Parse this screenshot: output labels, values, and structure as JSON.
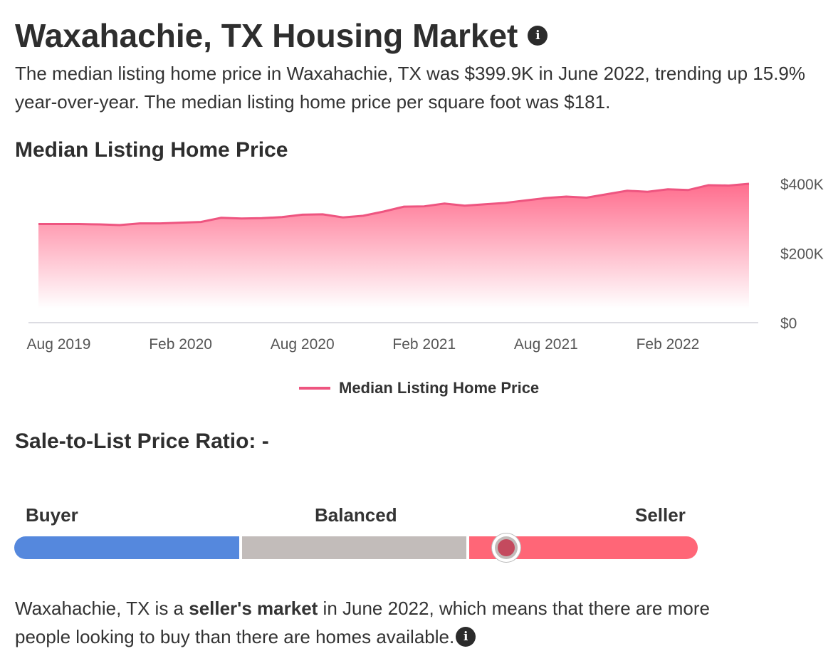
{
  "page": {
    "title": "Waxahachie, TX Housing Market",
    "intro": "The median listing home price in Waxahachie, TX was $399.9K in June 2022, trending up 15.9% year-over-year. The median listing home price per square foot was $181."
  },
  "chart_section": {
    "title": "Median Listing Home Price"
  },
  "chart_data": {
    "type": "area",
    "title": "Median Listing Home Price",
    "series": [
      {
        "name": "Median Listing Home Price",
        "color": "#ee5580",
        "x": [
          "Jul 2019",
          "Aug 2019",
          "Sep 2019",
          "Oct 2019",
          "Nov 2019",
          "Dec 2019",
          "Jan 2020",
          "Feb 2020",
          "Mar 2020",
          "Apr 2020",
          "May 2020",
          "Jun 2020",
          "Jul 2020",
          "Aug 2020",
          "Sep 2020",
          "Oct 2020",
          "Nov 2020",
          "Dec 2020",
          "Jan 2021",
          "Feb 2021",
          "Mar 2021",
          "Apr 2021",
          "May 2021",
          "Jun 2021",
          "Jul 2021",
          "Aug 2021",
          "Sep 2021",
          "Oct 2021",
          "Nov 2021",
          "Dec 2021",
          "Jan 2022",
          "Feb 2022",
          "Mar 2022",
          "Apr 2022",
          "May 2022",
          "Jun 2022"
        ],
        "values": [
          284000,
          284000,
          284000,
          283000,
          281000,
          286000,
          286000,
          288000,
          290000,
          302000,
          300000,
          301000,
          304000,
          311000,
          312000,
          303000,
          308000,
          320000,
          334000,
          335000,
          343000,
          337000,
          341000,
          345000,
          352000,
          359000,
          363000,
          360000,
          370000,
          380000,
          377000,
          384000,
          382000,
          396000,
          395000,
          399900
        ]
      }
    ],
    "x_ticks": [
      "Aug 2019",
      "Feb 2020",
      "Aug 2020",
      "Feb 2021",
      "Aug 2021",
      "Feb 2022"
    ],
    "y_ticks": [
      "$0",
      "$200K",
      "$400K"
    ],
    "ylim": [
      0,
      400000
    ],
    "legend": "bottom-center",
    "grid": false
  },
  "ratio_section": {
    "title": "Sale-to-List Price Ratio: -",
    "labels": {
      "buyer": "Buyer",
      "balanced": "Balanced",
      "seller": "Seller"
    },
    "colors": {
      "buyer": "#5588dd",
      "balanced": "#c2bcba",
      "seller": "#ff6677"
    },
    "marker_value": 0.72
  },
  "summary": {
    "prefix": "Waxahachie, TX is a ",
    "bold": "seller's market",
    "suffix": " in June 2022, which means that there are more people looking to buy than there are homes available."
  },
  "icons": {
    "info": "info-icon"
  }
}
